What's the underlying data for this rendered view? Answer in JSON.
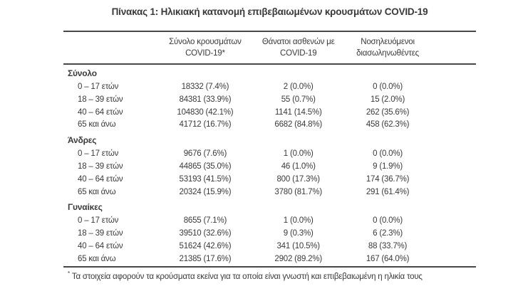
{
  "page": {
    "title": "Πίνακας 1: Ηλικιακή κατανομή επιβεβαιωμένων κρουσμάτων COVID-19"
  },
  "table": {
    "header": {
      "col2_line1": "Σύνολο κρουσμάτων",
      "col2_line2": "COVID-19*",
      "col3_line1": "Θάνατοι ασθενών με",
      "col3_line2": "COVID-19",
      "col4_line1": "Νοσηλευόμενοι",
      "col4_line2": "διασωληνωθέντες"
    },
    "sections": [
      {
        "label": "Σύνολο",
        "rows": [
          [
            "0 – 17 ετών",
            "18332 (7.4%)",
            "2 (0.0%)",
            "0 (0.0%)"
          ],
          [
            "18 – 39 ετών",
            "84381 (33.9%)",
            "55 (0.7%)",
            "15 (2.0%)"
          ],
          [
            "40 – 64 ετών",
            "104830 (42.1%)",
            "1141 (14.5%)",
            "262 (35.6%)"
          ],
          [
            "65 και άνω",
            "41712 (16.7%)",
            "6682 (84.8%)",
            "458 (62.3%)"
          ]
        ]
      },
      {
        "label": "Άνδρες",
        "rows": [
          [
            "0 – 17 ετών",
            "9676 (7.6%)",
            "1 (0.0%)",
            "0 (0.0%)"
          ],
          [
            "18 – 39 ετών",
            "44865 (35.0%)",
            "46 (1.0%)",
            "9 (1.9%)"
          ],
          [
            "40 – 64 ετών",
            "53193 (41.5%)",
            "800 (17.3%)",
            "174 (36.7%)"
          ],
          [
            "65 και άνω",
            "20324 (15.9%)",
            "3780 (81.7%)",
            "291 (61.4%)"
          ]
        ]
      },
      {
        "label": "Γυναίκες",
        "rows": [
          [
            "0 – 17 ετών",
            "8655 (7.1%)",
            "1 (0.0%)",
            "0 (0.0%)"
          ],
          [
            "18 – 39 ετών",
            "39510 (32.6%)",
            "9 (0.3%)",
            "6 (2.3%)"
          ],
          [
            "40 – 64 ετών",
            "51624 (42.6%)",
            "341 (10.5%)",
            "88 (33.7%)"
          ],
          [
            "65 και άνω",
            "21385 (17.6%)",
            "2902 (89.2%)",
            "167 (64.0%)"
          ]
        ]
      }
    ]
  },
  "footnote": {
    "marker": "*",
    "text": "Τα στοιχεία αφορούν τα κρούσματα εκείνα για τα οποία είναι γνωστή και επιβεβαιωμένη η ηλικία τους"
  },
  "colors": {
    "text": "#3a3a3c",
    "rule": "#47474a",
    "background": "#ffffff"
  }
}
